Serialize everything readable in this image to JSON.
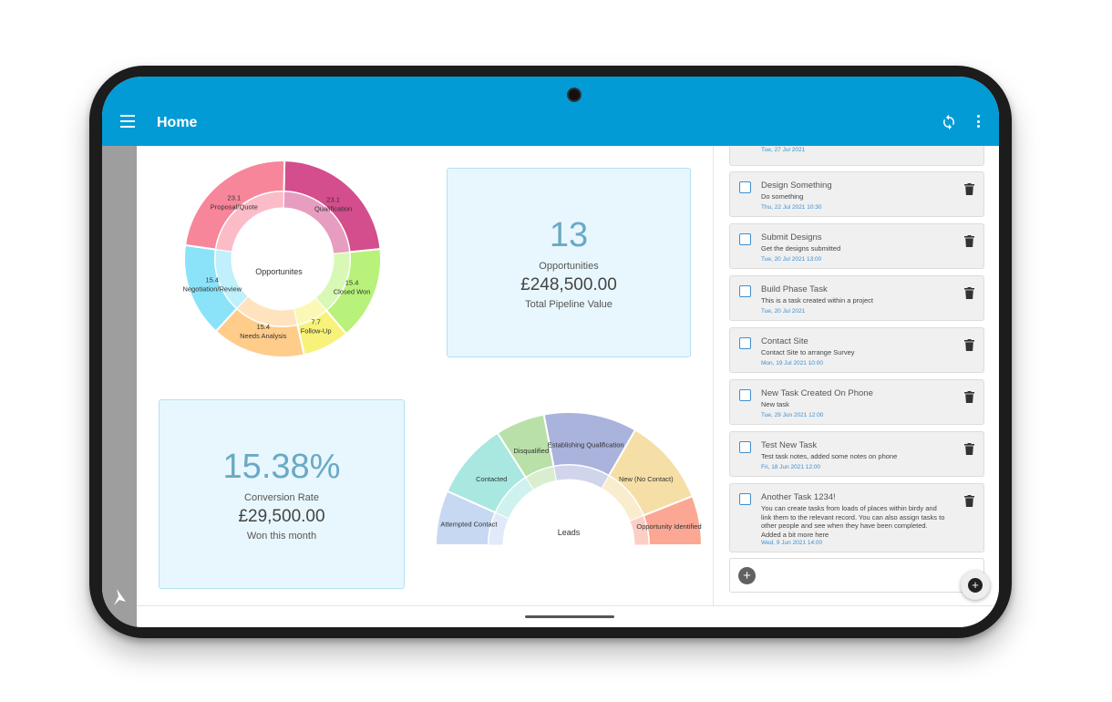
{
  "app": {
    "title": "Home",
    "accent": "#039bd6"
  },
  "icons": {
    "menu": "menu-icon",
    "sync": "sync-icon",
    "more": "more-vert-icon",
    "brand": "bird-logo-icon",
    "delete": "trash-icon",
    "add": "add-circle-icon"
  },
  "opportunities_chart": {
    "type": "pie",
    "center_label": "Opportunites",
    "slices": [
      {
        "label": "Qualification",
        "value": "23.1",
        "pct": 23.1,
        "color": "#d44d8c"
      },
      {
        "label": "Closed Won",
        "value": "15.4",
        "pct": 15.4,
        "color": "#b8f27a"
      },
      {
        "label": "Follow-Up",
        "value": "7.7",
        "pct": 7.7,
        "color": "#f8f27a"
      },
      {
        "label": "Needs Analysis",
        "value": "15.4",
        "pct": 15.4,
        "color": "#ffcc8a"
      },
      {
        "label": "Negotiation/Review",
        "value": "15.4",
        "pct": 15.4,
        "color": "#8ae3f8"
      },
      {
        "label": "Proposal/Quote",
        "value": "23.1",
        "pct": 23.1,
        "color": "#f7869a"
      }
    ]
  },
  "opportunities_card": {
    "count": "13",
    "label": "Opportunities",
    "value": "£248,500.00",
    "sub": "Total Pipeline Value"
  },
  "conversion_card": {
    "rate": "15.38%",
    "label": "Conversion Rate",
    "value": "£29,500.00",
    "sub": "Won this month"
  },
  "leads_chart": {
    "type": "pie",
    "center_label": "Leads",
    "segments": [
      {
        "label": "Attempted Contact",
        "share": 1,
        "color": "#c7d8f2"
      },
      {
        "label": "Contacted",
        "share": 1.4,
        "color": "#a8e8e0"
      },
      {
        "label": "Disqualified",
        "share": 0.9,
        "color": "#b9e0a8"
      },
      {
        "label": "Establishing Qualification",
        "share": 1.7,
        "color": "#a9b3db"
      },
      {
        "label": "New (No Contact)",
        "share": 1.6,
        "color": "#f5dfa6"
      },
      {
        "label": "Opportunity Identified",
        "share": 0.9,
        "color": "#fba794"
      }
    ]
  },
  "tasks": {
    "partial_date": "Tue, 27 Jul 2021",
    "items": [
      {
        "title": "Design Something",
        "desc": "Do something",
        "date": "Thu, 22 Jul 2021 10:30"
      },
      {
        "title": "Submit Designs",
        "desc": "Get the designs submitted",
        "date": "Tue, 20 Jul 2021 13:00"
      },
      {
        "title": "Build Phase Task",
        "desc": "This is a task created within a project",
        "date": "Tue, 20 Jul 2021"
      },
      {
        "title": "Contact Site",
        "desc": "Contact Site to arrange Survey",
        "date": "Mon, 19 Jul 2021 10:00"
      },
      {
        "title": "New Task Created On Phone",
        "desc": "New task",
        "date": "Tue, 29 Jun 2021 12:00"
      },
      {
        "title": "Test New Task",
        "desc": "Test task notes, added some notes on phone",
        "date": "Fri, 18 Jun 2021 12:00"
      },
      {
        "title": "Another Task 1234!",
        "desc": "You can create tasks from loads of places within birdy and link them to the relevant record. You can also assign tasks to other people and see when they have been completed. Added a bit more here",
        "date": "Wed, 9 Jun 2021 14:00"
      }
    ]
  }
}
